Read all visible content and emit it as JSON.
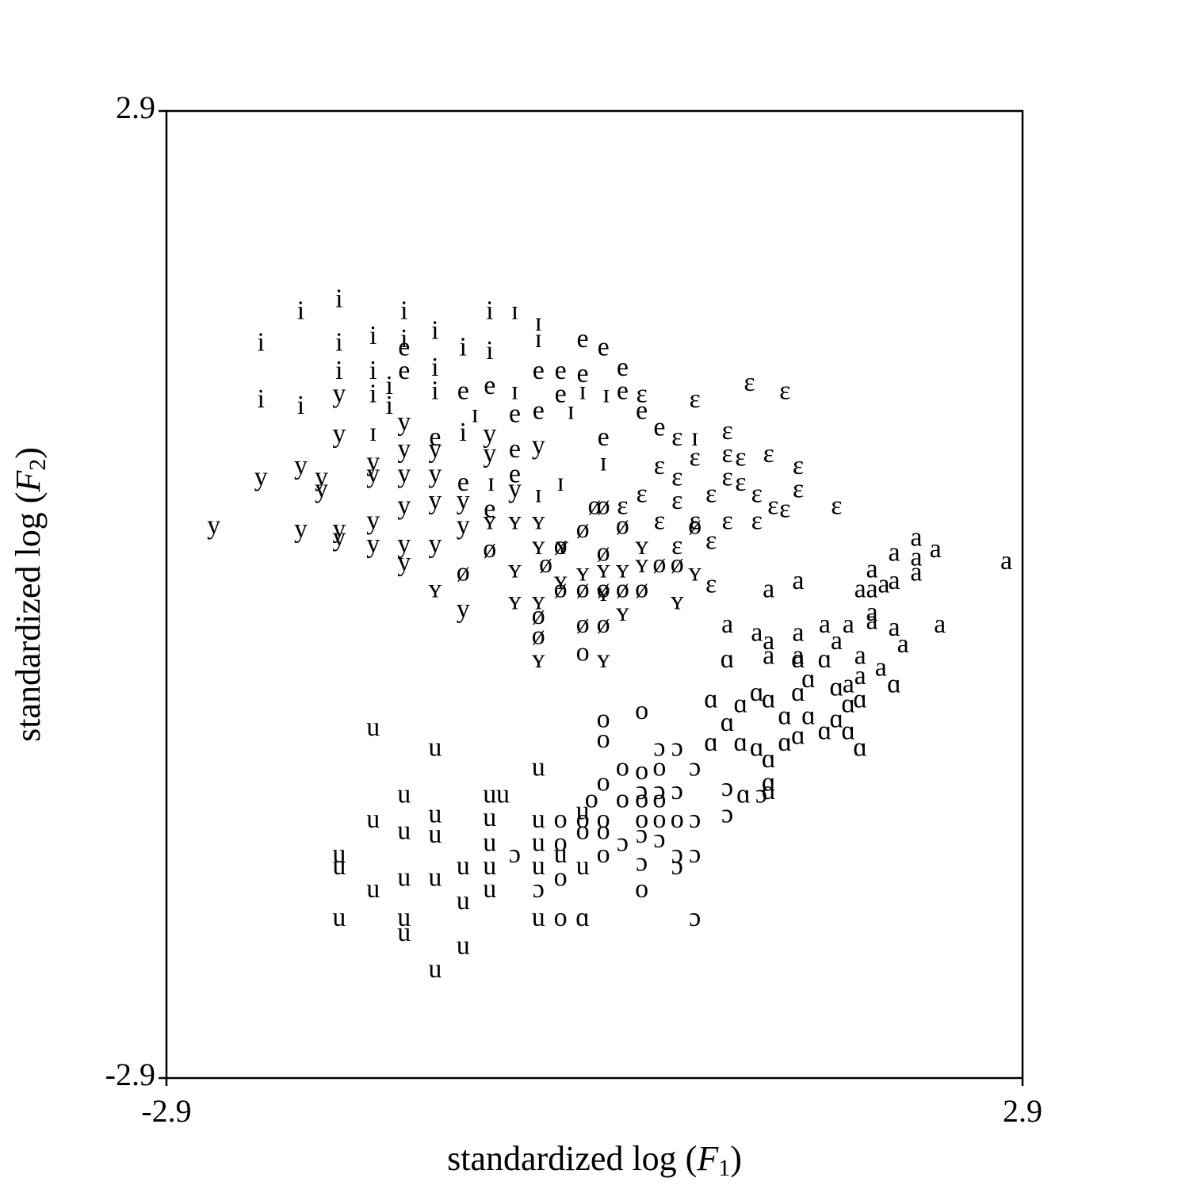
{
  "chart_data": {
    "type": "scatter",
    "xlabel_parts": [
      "standardized log (",
      "F",
      "1",
      ")"
    ],
    "ylabel_parts": [
      "standardized log (",
      "F",
      "2",
      ")"
    ],
    "xlim": [
      -2.9,
      2.9
    ],
    "ylim": [
      -2.9,
      2.9
    ],
    "xticks": [
      -2.9,
      2.9
    ],
    "yticks": [
      -2.9,
      2.9
    ],
    "grid": false,
    "series": [
      {
        "name": "i",
        "color": "#000000",
        "x": [
          -1.99,
          -1.73,
          -2.26,
          -1.73,
          -1.5,
          -1.29,
          -1.08,
          -0.71,
          -2.26,
          -1.99,
          -1.73,
          -1.5,
          -1.08,
          -1.08,
          -0.89,
          -0.71,
          -1.39,
          -1.39,
          -1.29,
          -1.5,
          -0.89
        ],
        "values": [
          1.69,
          1.76,
          1.5,
          1.5,
          1.54,
          1.69,
          1.57,
          1.69,
          1.16,
          1.12,
          1.33,
          1.33,
          1.35,
          1.21,
          1.47,
          1.45,
          1.24,
          1.12,
          1.52,
          1.19,
          0.96
        ]
      },
      {
        "name": "ɪ",
        "color": "#000000",
        "x": [
          -0.54,
          -0.38,
          -0.38,
          -1.5,
          -0.54,
          -0.81,
          -0.16,
          0.68,
          0.06,
          -0.23,
          -0.38,
          -0.7,
          -0.08,
          0.08
        ],
        "values": [
          1.69,
          1.62,
          1.52,
          0.96,
          1.21,
          1.07,
          1.09,
          0.93,
          0.78,
          0.66,
          0.59,
          0.66,
          1.21,
          1.19
        ]
      },
      {
        "name": "e",
        "color": "#000000",
        "x": [
          -0.08,
          0.19,
          -0.38,
          -0.23,
          -0.08,
          -1.29,
          -1.29,
          -0.89,
          -0.71,
          0.19,
          0.32,
          0.44,
          -0.54,
          -1.08,
          -0.54,
          -0.89,
          -0.71,
          -0.38,
          0.06,
          -0.54,
          -0.23,
          0.06
        ],
        "values": [
          1.52,
          1.35,
          1.33,
          1.33,
          1.31,
          1.47,
          1.33,
          1.21,
          1.24,
          1.21,
          1.09,
          0.99,
          1.07,
          0.93,
          0.86,
          0.66,
          0.5,
          1.09,
          0.93,
          0.71,
          1.19,
          1.47
        ]
      },
      {
        "name": "ɛ",
        "color": "#000000",
        "x": [
          1.05,
          1.29,
          0.68,
          0.32,
          0.9,
          0.56,
          0.68,
          0.9,
          0.99,
          1.18,
          1.38,
          0.44,
          0.56,
          0.9,
          0.99,
          0.79,
          1.1,
          1.21,
          1.29,
          1.38,
          1.64,
          0.9,
          1.1,
          0.56,
          0.68,
          0.79,
          0.79,
          0.19,
          0.32,
          0.44,
          0.56
        ],
        "values": [
          1.26,
          1.21,
          1.16,
          1.19,
          0.97,
          0.93,
          0.81,
          0.83,
          0.81,
          0.83,
          0.76,
          0.76,
          0.69,
          0.69,
          0.66,
          0.59,
          0.59,
          0.52,
          0.5,
          0.62,
          0.52,
          0.43,
          0.43,
          0.55,
          0.43,
          0.31,
          0.05,
          0.52,
          0.59,
          0.43,
          0.28
        ]
      },
      {
        "name": "y",
        "color": "#000000",
        "x": [
          -2.58,
          -2.26,
          -1.99,
          -1.85,
          -1.85,
          -1.99,
          -1.73,
          -1.73,
          -1.5,
          -1.5,
          -1.73,
          -1.73,
          -1.5,
          -1.5,
          -1.29,
          -1.29,
          -1.29,
          -1.29,
          -1.29,
          -1.29,
          -1.08,
          -1.08,
          -1.08,
          -1.08,
          -0.89,
          -0.89,
          -0.89,
          -0.71,
          -0.71,
          -0.54,
          -0.38
        ],
        "values": [
          0.4,
          0.69,
          0.76,
          0.69,
          0.62,
          0.38,
          0.38,
          0.33,
          0.43,
          0.29,
          0.95,
          1.19,
          0.78,
          0.71,
          1.02,
          0.86,
          0.71,
          0.52,
          0.29,
          0.18,
          0.86,
          0.71,
          0.55,
          0.29,
          0.55,
          0.4,
          -0.1,
          0.95,
          0.83,
          0.62,
          0.88
        ]
      },
      {
        "name": "ʏ",
        "color": "#000000",
        "x": [
          -1.08,
          -0.71,
          -0.54,
          -0.54,
          -0.54,
          -0.38,
          -0.38,
          -0.38,
          -0.38,
          -0.23,
          -0.08,
          0.06,
          0.19,
          0.32,
          0.06,
          0.19,
          0.06,
          0.56,
          0.68,
          0.32,
          -0.22
        ],
        "values": [
          0.02,
          0.43,
          0.43,
          0.14,
          -0.05,
          0.43,
          0.28,
          -0.05,
          -0.4,
          0.07,
          0.12,
          0.14,
          0.14,
          0.17,
          0.0,
          -0.12,
          -0.4,
          -0.05,
          0.12,
          0.28,
          0.28
        ]
      },
      {
        "name": "ø",
        "color": "#000000",
        "x": [
          -0.89,
          -0.71,
          -0.38,
          -0.38,
          -0.23,
          -0.08,
          0.06,
          0.19,
          0.32,
          -0.08,
          0.06,
          0.06,
          0.19,
          0.44,
          0.56,
          0.68,
          -0.08,
          -0.23,
          0.0,
          0.06,
          -0.33
        ],
        "values": [
          0.12,
          0.26,
          -0.26,
          -0.14,
          0.02,
          0.02,
          0.02,
          0.02,
          0.02,
          -0.19,
          -0.19,
          0.52,
          0.4,
          0.17,
          0.17,
          0.4,
          0.38,
          0.28,
          0.52,
          0.24,
          0.17
        ]
      },
      {
        "name": "a",
        "color": "#000000",
        "x": [
          2.79,
          2.18,
          2.31,
          2.03,
          2.18,
          1.88,
          2.03,
          2.18,
          1.8,
          1.88,
          1.96,
          1.38,
          1.18,
          0.9,
          1.1,
          1.18,
          1.38,
          1.56,
          1.64,
          1.72,
          1.88,
          2.03,
          2.34,
          1.88,
          1.8,
          1.94,
          2.09,
          1.38,
          1.18,
          1.72,
          1.8
        ],
        "values": [
          0.19,
          0.33,
          0.26,
          0.24,
          0.21,
          0.14,
          0.07,
          0.12,
          0.02,
          0.02,
          0.05,
          0.07,
          0.02,
          -0.19,
          -0.24,
          -0.29,
          -0.24,
          -0.19,
          -0.29,
          -0.19,
          -0.17,
          -0.21,
          -0.19,
          -0.12,
          -0.38,
          -0.45,
          -0.31,
          -0.38,
          -0.38,
          -0.55,
          -0.5
        ]
      },
      {
        "name": "ɑ",
        "color": "#000000",
        "x": [
          0.9,
          1.38,
          1.56,
          1.45,
          1.64,
          2.03,
          0.79,
          0.99,
          1.1,
          1.18,
          1.38,
          1.8,
          1.72,
          1.29,
          1.45,
          1.64,
          1.56,
          1.72,
          0.9,
          0.99,
          1.1,
          1.29,
          1.8,
          1.18,
          1.18,
          1.18,
          1.01,
          -0.08,
          1.38,
          0.79
        ],
        "values": [
          -0.4,
          -0.4,
          -0.4,
          -0.52,
          -0.57,
          -0.55,
          -0.64,
          -0.67,
          -0.6,
          -0.64,
          -0.6,
          -0.64,
          -0.67,
          -0.74,
          -0.74,
          -0.76,
          -0.83,
          -0.83,
          -0.78,
          -0.9,
          -0.93,
          -0.9,
          -0.93,
          -1.0,
          -1.14,
          -1.19,
          -1.21,
          -1.95,
          -0.86,
          -0.9
        ]
      },
      {
        "name": "ɔ",
        "color": "#000000",
        "x": [
          0.44,
          0.56,
          0.68,
          0.9,
          1.13,
          0.56,
          0.68,
          0.9,
          0.19,
          0.32,
          0.44,
          0.32,
          0.56,
          0.68,
          -0.54,
          -0.38,
          0.68,
          0.44,
          0.32,
          0.56
        ],
        "values": [
          -0.93,
          -0.93,
          -1.05,
          -1.17,
          -1.21,
          -1.19,
          -1.36,
          -1.33,
          -1.5,
          -1.45,
          -1.48,
          -1.62,
          -1.64,
          -1.57,
          -1.57,
          -1.78,
          -1.95,
          -1.19,
          -1.19,
          -1.57
        ]
      },
      {
        "name": "o",
        "color": "#000000",
        "x": [
          0.32,
          0.06,
          0.06,
          -0.08,
          0.19,
          0.32,
          0.44,
          0.06,
          0.19,
          0.32,
          0.44,
          -0.02,
          -0.23,
          -0.08,
          0.06,
          0.32,
          0.44,
          0.56,
          -0.23,
          0.06,
          -0.23,
          0.32,
          -0.23,
          -0.08,
          0.06
        ],
        "values": [
          -0.71,
          -0.76,
          -0.88,
          -0.36,
          -1.05,
          -1.07,
          -1.05,
          -1.14,
          -1.24,
          -1.24,
          -1.24,
          -1.24,
          -1.36,
          -1.36,
          -1.36,
          -1.36,
          -1.36,
          -1.36,
          -1.5,
          -1.57,
          -1.71,
          -1.78,
          -1.95,
          -1.43,
          -1.43
        ]
      },
      {
        "name": "u",
        "color": "#000000",
        "x": [
          -1.5,
          -1.08,
          -0.38,
          -1.29,
          -0.71,
          -0.62,
          -1.5,
          -1.29,
          -1.08,
          -1.08,
          -0.71,
          -0.38,
          -0.23,
          -0.38,
          -1.73,
          -1.73,
          -1.5,
          -1.29,
          -1.08,
          -0.89,
          -0.71,
          -0.71,
          -0.89,
          -1.73,
          -1.29,
          -1.29,
          -0.89,
          -1.08,
          -0.38,
          -0.08,
          -0.08,
          -0.71,
          -0.38
        ],
        "values": [
          -0.81,
          -0.93,
          -1.05,
          -1.21,
          -1.21,
          -1.21,
          -1.36,
          -1.43,
          -1.33,
          -1.45,
          -1.35,
          -1.36,
          -1.57,
          -1.5,
          -1.57,
          -1.64,
          -1.78,
          -1.71,
          -1.71,
          -1.64,
          -1.64,
          -1.78,
          -1.85,
          -1.95,
          -1.95,
          -2.04,
          -2.12,
          -2.26,
          -1.95,
          -1.64,
          -1.31,
          -1.5,
          -1.64
        ]
      }
    ]
  }
}
